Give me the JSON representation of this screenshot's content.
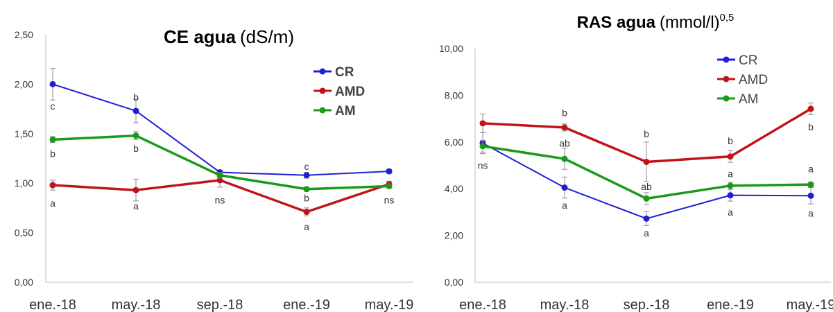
{
  "chart_data": [
    {
      "type": "line",
      "title": "CE agua",
      "title_unit": "(dS/m)",
      "title_unit_sup": "",
      "categories": [
        "ene.-18",
        "may.-18",
        "sep.-18",
        "ene.-19",
        "may.-19"
      ],
      "ylim": [
        0,
        2.5
      ],
      "yticks": [
        "0,00",
        "0,50",
        "1,00",
        "1,50",
        "2,00",
        "2,50"
      ],
      "legend_position": "top-right",
      "legend_bold": true,
      "series": [
        {
          "name": "CR",
          "color": "#1f1fd6",
          "values": [
            2.0,
            1.73,
            1.11,
            1.08,
            1.12
          ],
          "err": [
            0.16,
            0.12,
            0.02,
            0.03,
            0.02
          ]
        },
        {
          "name": "AMD",
          "color": "#c0141a",
          "values": [
            0.98,
            0.93,
            1.03,
            0.71,
            0.99
          ],
          "err": [
            0.05,
            0.11,
            0.07,
            0.04,
            0.03
          ]
        },
        {
          "name": "AM",
          "color": "#1a9a1a",
          "values": [
            1.44,
            1.48,
            1.08,
            0.94,
            0.97
          ],
          "err": [
            0.03,
            0.04,
            0.03,
            0.02,
            0.02
          ]
        }
      ],
      "annotations": [
        {
          "text": "c",
          "x": 0,
          "y": 1.78
        },
        {
          "text": "b",
          "x": 0,
          "y": 1.3
        },
        {
          "text": "a",
          "x": 0,
          "y": 0.8
        },
        {
          "text": "b",
          "x": 1,
          "y": 1.87
        },
        {
          "text": "b",
          "x": 1,
          "y": 1.35
        },
        {
          "text": "a",
          "x": 1,
          "y": 0.77
        },
        {
          "text": "ns",
          "x": 2,
          "y": 0.83
        },
        {
          "text": "c",
          "x": 3,
          "y": 1.17
        },
        {
          "text": "b",
          "x": 3,
          "y": 0.85
        },
        {
          "text": "a",
          "x": 3,
          "y": 0.56
        },
        {
          "text": "ns",
          "x": 4,
          "y": 0.83
        }
      ]
    },
    {
      "type": "line",
      "title": "RAS agua",
      "title_unit": "(mmol/l)",
      "title_unit_sup": "0,5",
      "categories": [
        "ene.-18",
        "may.-18",
        "sep.-18",
        "ene.-19",
        "may.-19"
      ],
      "ylim": [
        0,
        10
      ],
      "yticks": [
        "0,00",
        "2,00",
        "4,00",
        "6,00",
        "8,00",
        "10,00"
      ],
      "legend_position": "top-right",
      "legend_bold": false,
      "series": [
        {
          "name": "CR",
          "color": "#1f1fd6",
          "values": [
            5.95,
            4.05,
            2.72,
            3.72,
            3.7
          ],
          "err": [
            0.45,
            0.45,
            0.3,
            0.25,
            0.35
          ]
        },
        {
          "name": "AMD",
          "color": "#c0141a",
          "values": [
            6.8,
            6.62,
            5.15,
            5.38,
            7.42
          ],
          "err": [
            0.4,
            0.15,
            0.85,
            0.25,
            0.25
          ]
        },
        {
          "name": "AM",
          "color": "#1a9a1a",
          "values": [
            5.82,
            5.28,
            3.58,
            4.13,
            4.18
          ],
          "err": [
            0.25,
            0.45,
            0.25,
            0.15,
            0.1
          ]
        }
      ],
      "annotations": [
        {
          "text": "ns",
          "x": 0,
          "y": 5.0
        },
        {
          "text": "b",
          "x": 1,
          "y": 7.25
        },
        {
          "text": "ab",
          "x": 1,
          "y": 5.95
        },
        {
          "text": "a",
          "x": 1,
          "y": 3.3
        },
        {
          "text": "b",
          "x": 2,
          "y": 6.35
        },
        {
          "text": "ab",
          "x": 2,
          "y": 4.1
        },
        {
          "text": "a",
          "x": 2,
          "y": 2.1
        },
        {
          "text": "b",
          "x": 3,
          "y": 6.05
        },
        {
          "text": "a",
          "x": 3,
          "y": 4.65
        },
        {
          "text": "a",
          "x": 3,
          "y": 3.0
        },
        {
          "text": "a",
          "x": 4,
          "y": 4.85
        },
        {
          "text": "b",
          "x": 4,
          "y": 6.65
        },
        {
          "text": "a",
          "x": 4,
          "y": 2.95
        }
      ]
    }
  ]
}
